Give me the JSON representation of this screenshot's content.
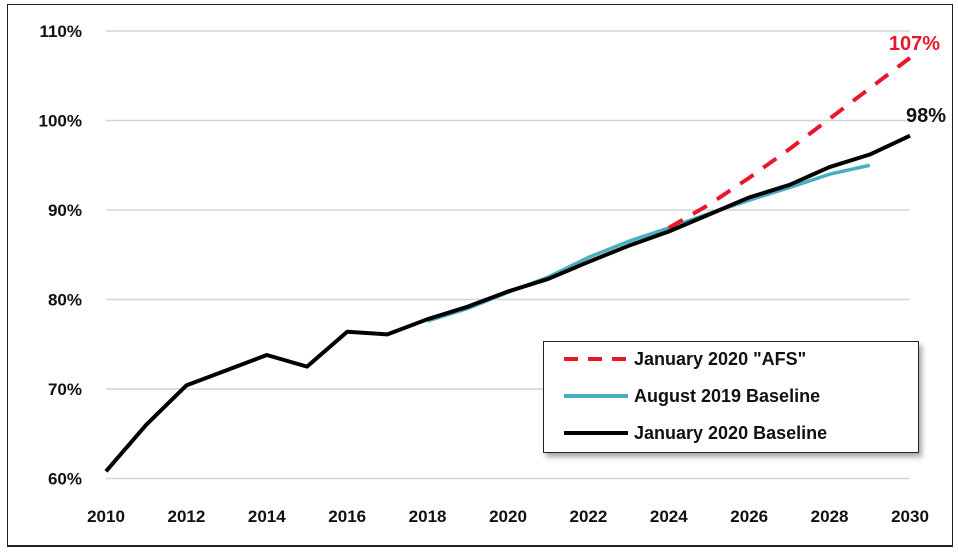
{
  "chart_data": {
    "type": "line",
    "x": [
      2010,
      2011,
      2012,
      2013,
      2014,
      2015,
      2016,
      2017,
      2018,
      2019,
      2020,
      2021,
      2022,
      2023,
      2024,
      2025,
      2026,
      2027,
      2028,
      2029,
      2030
    ],
    "series": [
      {
        "name": "January 2020 \"AFS\"",
        "color": "#e8182a",
        "style": "dashed",
        "x": [
          2024,
          2025,
          2026,
          2027,
          2028,
          2029,
          2030
        ],
        "values": [
          88.0,
          90.6,
          93.6,
          96.8,
          100.2,
          103.6,
          107.0
        ]
      },
      {
        "name": "August 2019 Baseline",
        "color": "#4aaec0",
        "style": "solid",
        "x": [
          2018,
          2019,
          2020,
          2021,
          2022,
          2023,
          2024,
          2025,
          2026,
          2027,
          2028,
          2029
        ],
        "values": [
          77.6,
          79.0,
          80.8,
          82.5,
          84.7,
          86.5,
          88.0,
          89.6,
          91.1,
          92.5,
          94.0,
          95.0
        ]
      },
      {
        "name": "January 2020 Baseline",
        "color": "#000000",
        "style": "solid",
        "x": [
          2010,
          2011,
          2012,
          2013,
          2014,
          2015,
          2016,
          2017,
          2018,
          2019,
          2020,
          2021,
          2022,
          2023,
          2024,
          2025,
          2026,
          2027,
          2028,
          2029,
          2030
        ],
        "values": [
          60.8,
          66.0,
          70.4,
          72.1,
          73.8,
          72.5,
          76.4,
          76.1,
          77.8,
          79.2,
          80.9,
          82.3,
          84.2,
          86.0,
          87.6,
          89.5,
          91.4,
          92.8,
          94.8,
          96.2,
          98.3
        ]
      }
    ],
    "annotations": [
      {
        "text": "107%",
        "color": "#e8182a"
      },
      {
        "text": "98%",
        "color": "#111111"
      }
    ],
    "xticks": [
      "2010",
      "2012",
      "2014",
      "2016",
      "2018",
      "2020",
      "2022",
      "2024",
      "2026",
      "2028",
      "2030"
    ],
    "yticks": [
      "60%",
      "70%",
      "80%",
      "90%",
      "100%",
      "110%"
    ],
    "ylim": [
      60,
      110
    ],
    "xlim": [
      2010,
      2030
    ],
    "grid": "horizontal",
    "legend_position": "bottom-right"
  }
}
